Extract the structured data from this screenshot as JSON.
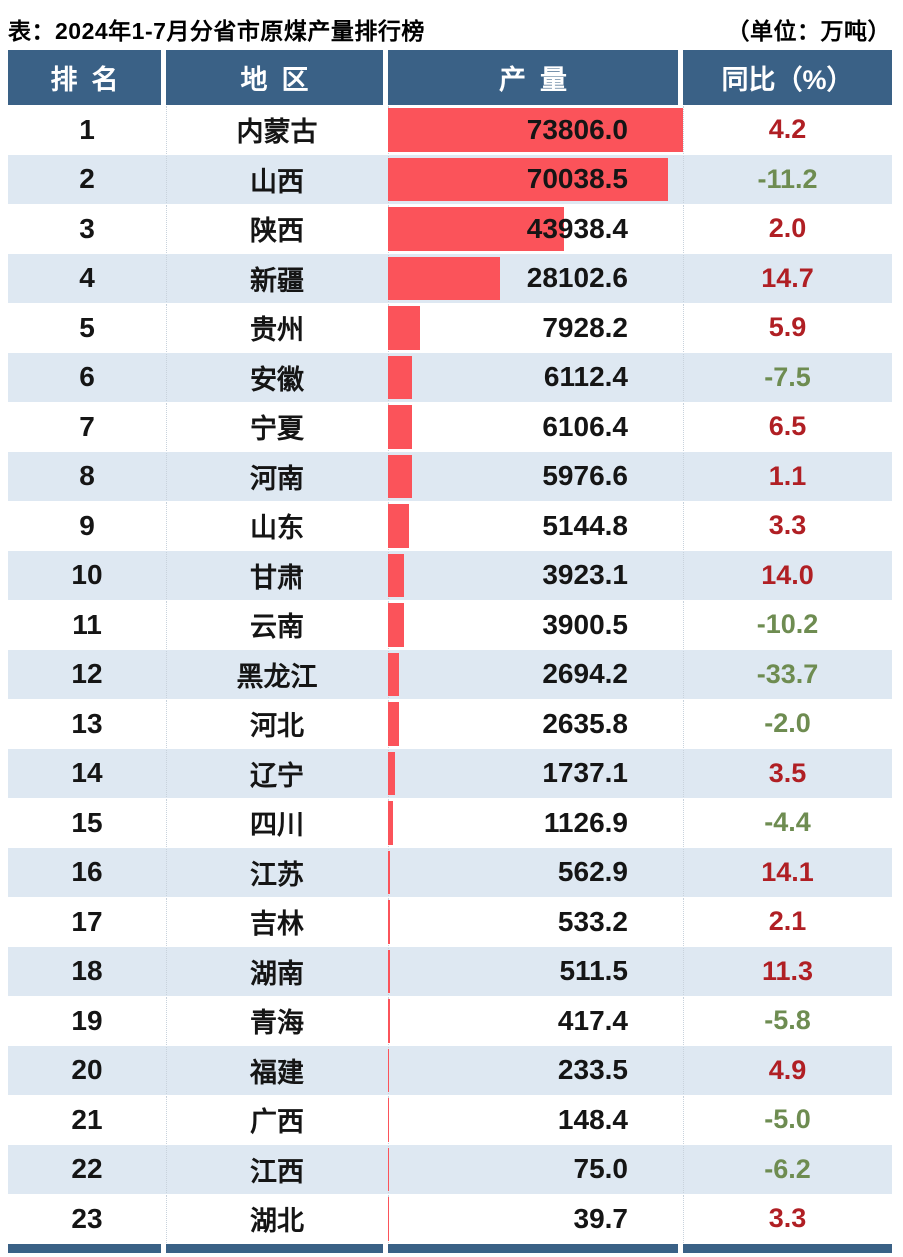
{
  "page": {
    "title": "表：2024年1-7月分省市原煤产量排行榜",
    "unit_label": "（单位：万吨）"
  },
  "colors": {
    "header_bg": "#3A6186",
    "bar_red": "#FB535A",
    "alt_row_bg": "#DEE8F2",
    "yoy_positive_red": "#B01F24",
    "yoy_negative_green": "#6E8C51",
    "body_text": "#151515",
    "dotted_separator": "#C8D2DC"
  },
  "table": {
    "columns": [
      {
        "key": "rank",
        "label": "排名"
      },
      {
        "key": "region",
        "label": "地区"
      },
      {
        "key": "production",
        "label": "产量"
      },
      {
        "key": "yoy",
        "label": "同比（%）"
      }
    ]
  },
  "chart_data": {
    "type": "bar",
    "title": "2024年1-7月分省市原煤产量排行榜",
    "unit": "万吨",
    "value_column": "产量",
    "yoy_column": "同比（%）",
    "bar_scale_max": 73806.0,
    "rows": [
      {
        "rank": "1",
        "region": "内蒙古",
        "production": "73806.0",
        "yoy": "4.2"
      },
      {
        "rank": "2",
        "region": "山西",
        "production": "70038.5",
        "yoy": "-11.2"
      },
      {
        "rank": "3",
        "region": "陕西",
        "production": "43938.4",
        "yoy": "2.0"
      },
      {
        "rank": "4",
        "region": "新疆",
        "production": "28102.6",
        "yoy": "14.7"
      },
      {
        "rank": "5",
        "region": "贵州",
        "production": "7928.2",
        "yoy": "5.9"
      },
      {
        "rank": "6",
        "region": "安徽",
        "production": "6112.4",
        "yoy": "-7.5"
      },
      {
        "rank": "7",
        "region": "宁夏",
        "production": "6106.4",
        "yoy": "6.5"
      },
      {
        "rank": "8",
        "region": "河南",
        "production": "5976.6",
        "yoy": "1.1"
      },
      {
        "rank": "9",
        "region": "山东",
        "production": "5144.8",
        "yoy": "3.3"
      },
      {
        "rank": "10",
        "region": "甘肃",
        "production": "3923.1",
        "yoy": "14.0"
      },
      {
        "rank": "11",
        "region": "云南",
        "production": "3900.5",
        "yoy": "-10.2"
      },
      {
        "rank": "12",
        "region": "黑龙江",
        "production": "2694.2",
        "yoy": "-33.7"
      },
      {
        "rank": "13",
        "region": "河北",
        "production": "2635.8",
        "yoy": "-2.0"
      },
      {
        "rank": "14",
        "region": "辽宁",
        "production": "1737.1",
        "yoy": "3.5"
      },
      {
        "rank": "15",
        "region": "四川",
        "production": "1126.9",
        "yoy": "-4.4"
      },
      {
        "rank": "16",
        "region": "江苏",
        "production": "562.9",
        "yoy": "14.1"
      },
      {
        "rank": "17",
        "region": "吉林",
        "production": "533.2",
        "yoy": "2.1"
      },
      {
        "rank": "18",
        "region": "湖南",
        "production": "511.5",
        "yoy": "11.3"
      },
      {
        "rank": "19",
        "region": "青海",
        "production": "417.4",
        "yoy": "-5.8"
      },
      {
        "rank": "20",
        "region": "福建",
        "production": "233.5",
        "yoy": "4.9"
      },
      {
        "rank": "21",
        "region": "广西",
        "production": "148.4",
        "yoy": "-5.0"
      },
      {
        "rank": "22",
        "region": "江西",
        "production": "75.0",
        "yoy": "-6.2"
      },
      {
        "rank": "23",
        "region": "湖北",
        "production": "39.7",
        "yoy": "3.3"
      }
    ]
  }
}
